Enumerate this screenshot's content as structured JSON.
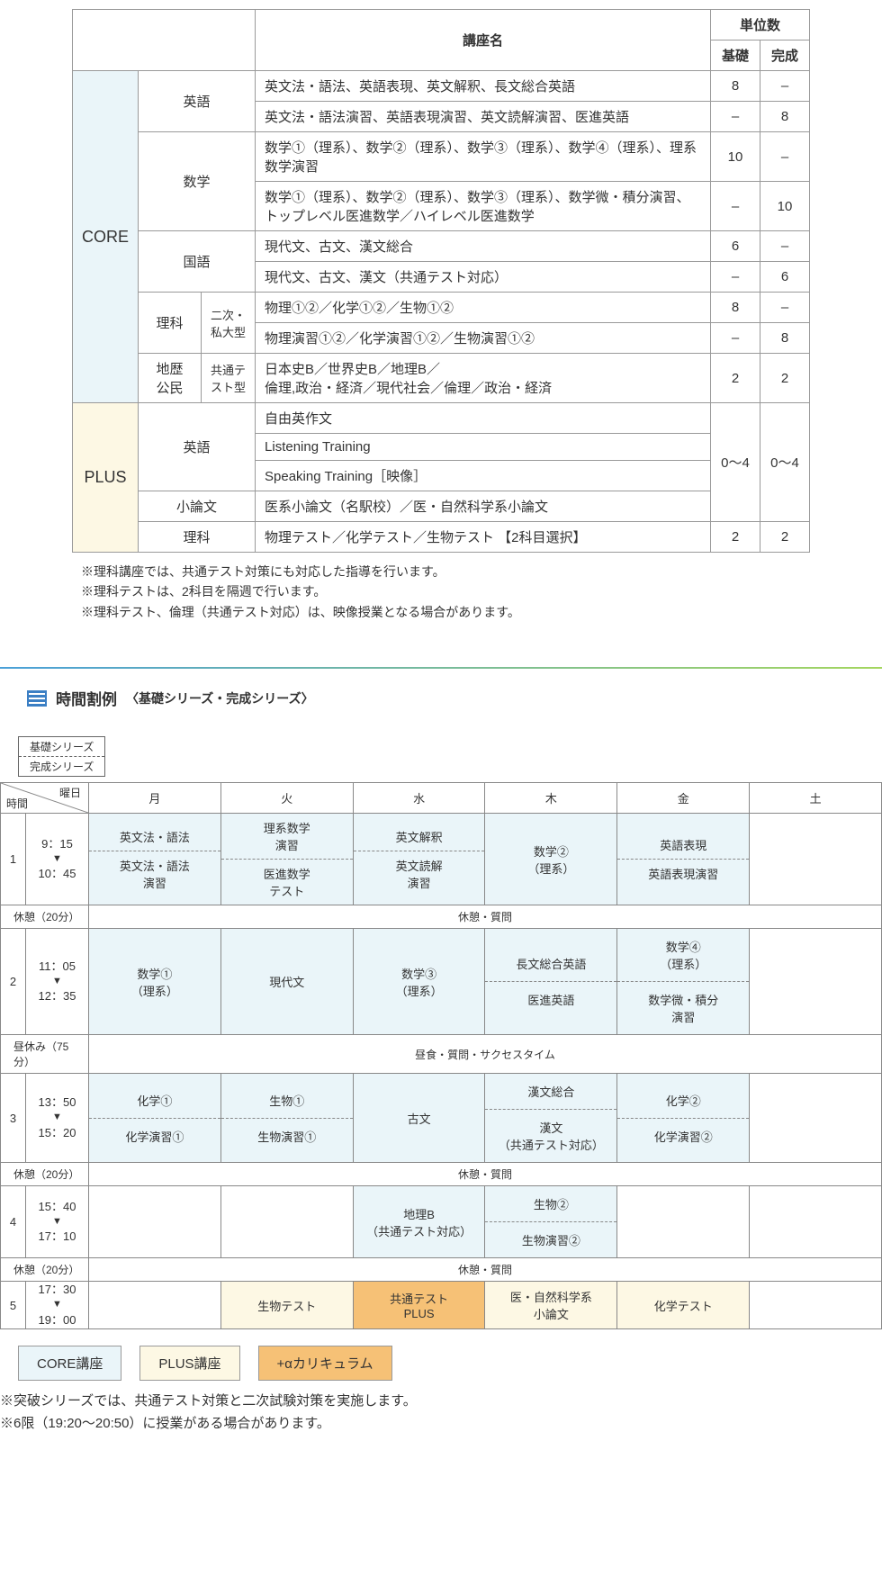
{
  "courseTable": {
    "headers": {
      "name": "講座名",
      "credits": "単位数",
      "basic": "基礎",
      "complete": "完成"
    },
    "groups": [
      {
        "label": "CORE",
        "bg": "#eaf5f9"
      },
      {
        "label": "PLUS",
        "bg": "#fdf8e4"
      }
    ],
    "rows": [
      {
        "subj": "英語",
        "name": "英文法・語法、英語表現、英文解釈、長文総合英語",
        "b": "8",
        "c": "–"
      },
      {
        "name": "英文法・語法演習、英語表現演習、英文読解演習、医進英語",
        "b": "–",
        "c": "8"
      },
      {
        "subj": "数学",
        "name": "数学①（理系）、数学②（理系）、数学③（理系）、数学④（理系）、理系数学演習",
        "b": "10",
        "c": "–"
      },
      {
        "name": "数学①（理系）、数学②（理系）、数学③（理系）、数学微・積分演習、\nトップレベル医進数学／ハイレベル医進数学",
        "b": "–",
        "c": "10"
      },
      {
        "subj": "国語",
        "name": "現代文、古文、漢文総合",
        "b": "6",
        "c": "–"
      },
      {
        "name": "現代文、古文、漢文（共通テスト対応）",
        "b": "–",
        "c": "6"
      },
      {
        "subj": "理科",
        "type": "二次・私大型",
        "name": "物理①②／化学①②／生物①②",
        "b": "8",
        "c": "–"
      },
      {
        "name": "物理演習①②／化学演習①②／生物演習①②",
        "b": "–",
        "c": "8"
      },
      {
        "subj": "地歴\n公民",
        "type": "共通テスト型",
        "name": "日本史B／世界史B／地理B／\n倫理,政治・経済／現代社会／倫理／政治・経済",
        "b": "2",
        "c": "2"
      },
      {
        "subj": "英語",
        "name": "自由英作文"
      },
      {
        "name": "Listening Training"
      },
      {
        "name": "Speaking Training［映像］"
      },
      {
        "subj": "小論文",
        "name": "医系小論文（名駅校）／医・自然科学系小論文"
      },
      {
        "subj": "理科",
        "name": "物理テスト／化学テスト／生物テスト 【2科目選択】",
        "b": "2",
        "c": "2"
      }
    ],
    "plusRange": {
      "b": "0～4",
      "c": "0～4"
    },
    "notes": [
      "※理科講座では、共通テスト対策にも対応した指導を行います。",
      "※理科テストは、2科目を隔週で行います。",
      "※理科テスト、倫理（共通テスト対応）は、映像授業となる場合があります。"
    ]
  },
  "sectionTitle": {
    "main": "時間割例",
    "sub": "〈基礎シリーズ・完成シリーズ〉"
  },
  "series": {
    "top": "基礎シリーズ",
    "bot": "完成シリーズ"
  },
  "schedule": {
    "diag": {
      "yobi": "曜日",
      "jikan": "時間"
    },
    "days": [
      "月",
      "火",
      "水",
      "木",
      "金",
      "土"
    ],
    "periods": [
      {
        "n": "1",
        "t1": "9：15",
        "t2": "10：45"
      },
      {
        "n": "2",
        "t1": "11：05",
        "t2": "12：35"
      },
      {
        "n": "3",
        "t1": "13：50",
        "t2": "15：20"
      },
      {
        "n": "4",
        "t1": "15：40",
        "t2": "17：10"
      },
      {
        "n": "5",
        "t1": "17：30",
        "t2": "19：00"
      }
    ],
    "breaks": {
      "b20": "休憩（20分）",
      "lunch": "昼休み（75分）",
      "rest": "休憩・質問",
      "lunchR": "昼食・質問・サクセスタイム"
    },
    "cells": {
      "p1": {
        "mon": {
          "top": "英文法・語法",
          "bot": "英文法・語法\n演習",
          "cls": "cell-core"
        },
        "tue": {
          "top": "理系数学\n演習",
          "bot": "医進数学\nテスト",
          "cls": "cell-core"
        },
        "wed": {
          "top": "英文解釈",
          "bot": "英文読解\n演習",
          "cls": "cell-core"
        },
        "thu": {
          "single": "数学②\n（理系）",
          "cls": "cell-core"
        },
        "fri": {
          "top": "英語表現",
          "bot": "英語表現演習",
          "cls": "cell-core"
        },
        "sat": {
          "single": "",
          "cls": ""
        }
      },
      "p2": {
        "mon": {
          "single": "数学①\n（理系）",
          "cls": "cell-core"
        },
        "tue": {
          "single": "現代文",
          "cls": "cell-core"
        },
        "wed": {
          "single": "数学③\n（理系）",
          "cls": "cell-core"
        },
        "thu": {
          "top": "長文総合英語",
          "bot": "医進英語",
          "cls": "cell-core"
        },
        "fri": {
          "top": "数学④\n（理系）",
          "bot": "数学微・積分\n演習",
          "cls": "cell-core"
        },
        "sat": {
          "single": "",
          "cls": ""
        }
      },
      "p3": {
        "mon": {
          "top": "化学①",
          "bot": "化学演習①",
          "cls": "cell-core"
        },
        "tue": {
          "top": "生物①",
          "bot": "生物演習①",
          "cls": "cell-core"
        },
        "wed": {
          "single": "古文",
          "cls": "cell-core"
        },
        "thu": {
          "top": "漢文総合",
          "bot": "漢文\n（共通テスト対応）",
          "cls": "cell-core"
        },
        "fri": {
          "top": "化学②",
          "bot": "化学演習②",
          "cls": "cell-core"
        },
        "sat": {
          "single": "",
          "cls": ""
        }
      },
      "p4": {
        "mon": {
          "single": "",
          "cls": ""
        },
        "tue": {
          "single": "",
          "cls": ""
        },
        "wed": {
          "single": "地理B\n（共通テスト対応）",
          "cls": "cell-core"
        },
        "thu": {
          "top": "生物②",
          "bot": "生物演習②",
          "cls": "cell-core"
        },
        "fri": {
          "single": "",
          "cls": ""
        },
        "sat": {
          "single": "",
          "cls": ""
        }
      },
      "p5": {
        "mon": {
          "single": "",
          "cls": ""
        },
        "tue": {
          "single": "生物テスト",
          "cls": "cell-plus"
        },
        "wed": {
          "single": "共通テスト\nPLUS",
          "cls": "cell-alpha"
        },
        "thu": {
          "single": "医・自然科学系\n小論文",
          "cls": "cell-plus"
        },
        "fri": {
          "single": "化学テスト",
          "cls": "cell-plus"
        },
        "sat": {
          "single": "",
          "cls": ""
        }
      }
    },
    "legend": [
      {
        "label": "CORE講座",
        "cls": "lg-core"
      },
      {
        "label": "PLUS講座",
        "cls": "lg-plus"
      },
      {
        "label": "+αカリキュラム",
        "cls": "lg-alpha"
      }
    ],
    "notes2": [
      "※突破シリーズでは、共通テスト対策と二次試験対策を実施します。",
      "※6限（19:20～20:50）に授業がある場合があります。"
    ]
  },
  "colors": {
    "core": "#eaf5f9",
    "plus": "#fdf8e4",
    "alpha": "#f6c176",
    "border": "#888888",
    "text": "#333333"
  }
}
